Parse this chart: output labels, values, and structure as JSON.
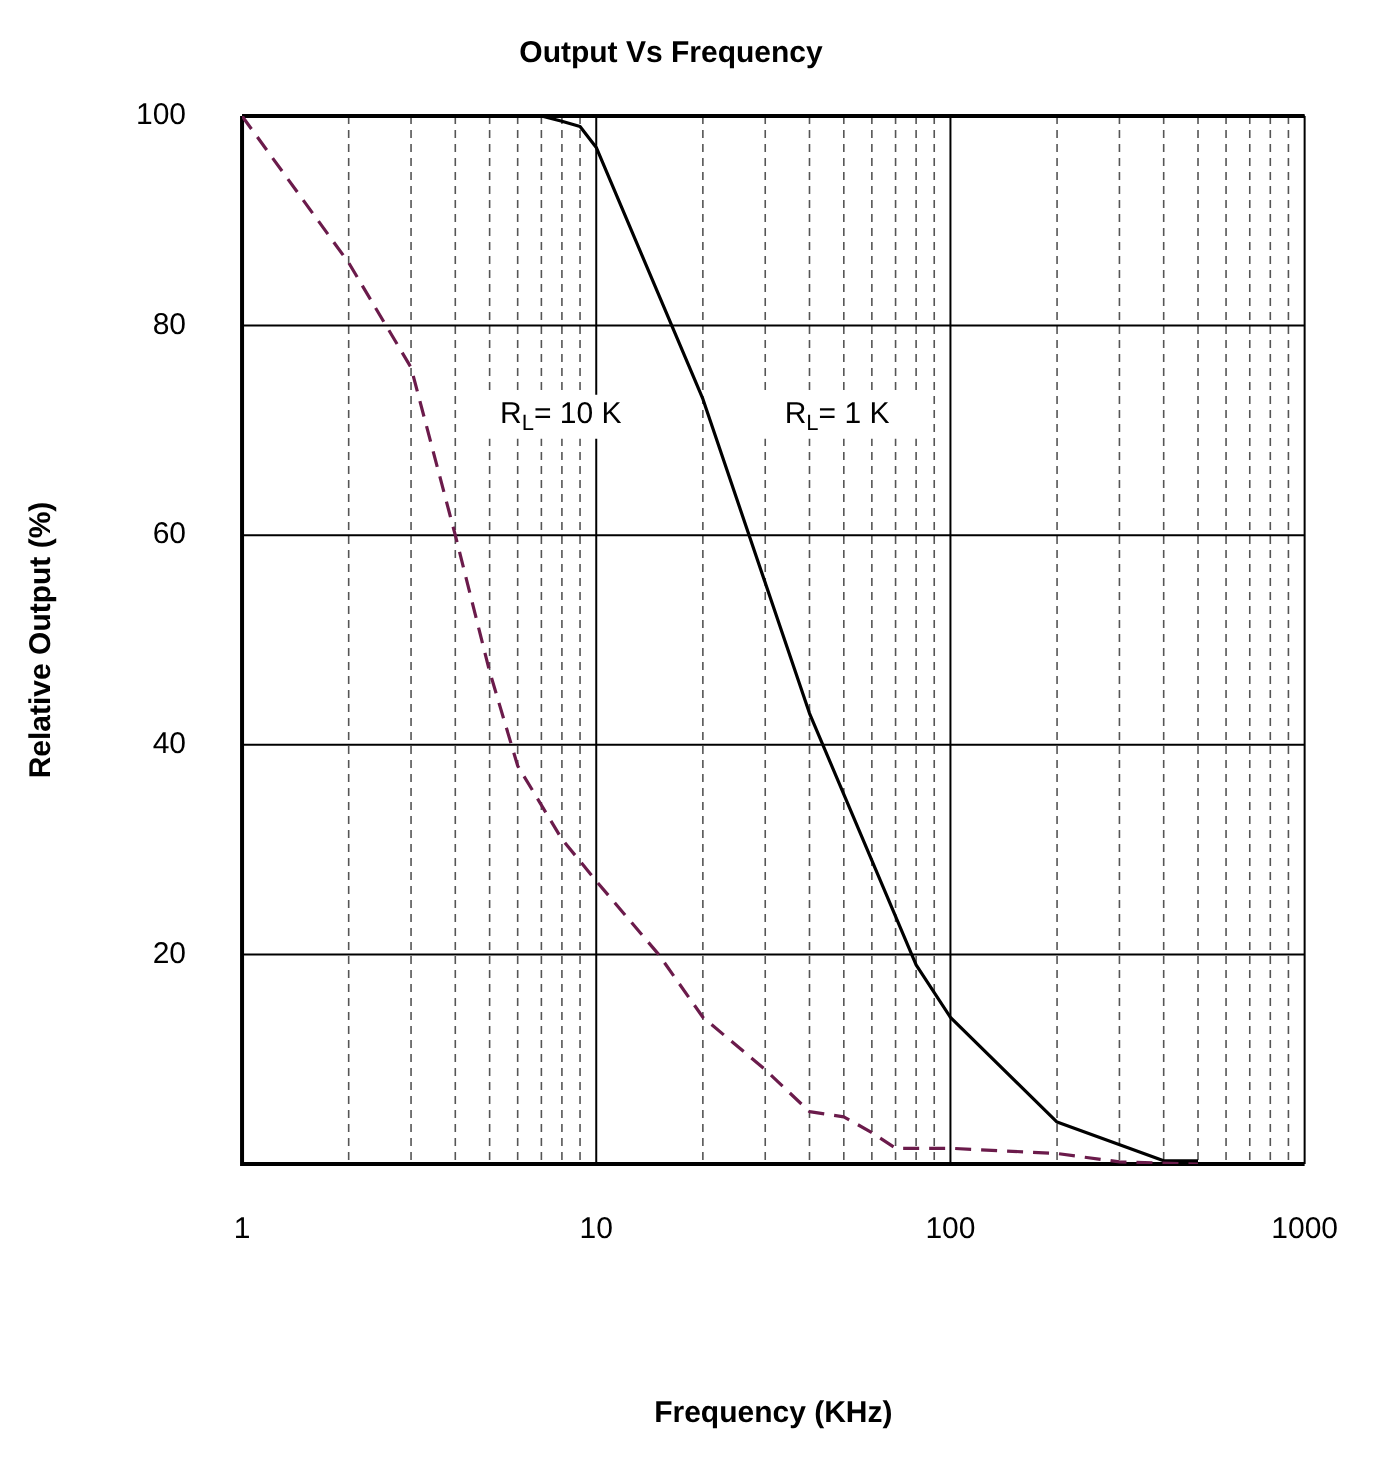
{
  "chart_data": {
    "type": "line",
    "title": "Output Vs Frequency",
    "xlabel": "Frequency (KHz)",
    "ylabel": "Relative Output (%)",
    "log": "x",
    "grid": true,
    "legend": false,
    "marker": "none",
    "xlim": [
      1,
      1000
    ],
    "xticks": [
      1,
      {
        "value": 2,
        "label": null
      },
      {
        "value": 3,
        "label": null
      },
      {
        "value": 4,
        "label": null
      },
      {
        "value": 5,
        "label": null
      },
      {
        "value": 6,
        "label": null
      },
      {
        "value": 7,
        "label": null
      },
      {
        "value": 8,
        "label": null
      },
      {
        "value": 9,
        "label": null
      },
      10,
      {
        "value": 20,
        "label": null
      },
      {
        "value": 30,
        "label": null
      },
      {
        "value": 40,
        "label": null
      },
      {
        "value": 50,
        "label": null
      },
      {
        "value": 60,
        "label": null
      },
      {
        "value": 70,
        "label": null
      },
      {
        "value": 80,
        "label": null
      },
      {
        "value": 90,
        "label": null
      },
      100,
      {
        "value": 200,
        "label": null
      },
      {
        "value": 300,
        "label": null
      },
      {
        "value": 400,
        "label": null
      },
      {
        "value": 500,
        "label": null
      },
      {
        "value": 600,
        "label": null
      },
      {
        "value": 700,
        "label": null
      },
      {
        "value": 800,
        "label": null
      },
      {
        "value": 900,
        "label": null
      },
      1000
    ],
    "ylim": [
      0,
      100
    ],
    "yticks": [
      20,
      40,
      60,
      80,
      100
    ],
    "series": [
      {
        "color": "#6b1b4b",
        "line_style": "dashed",
        "x": [
          1,
          2,
          3,
          4,
          5,
          6,
          8,
          10,
          15,
          20,
          30,
          40,
          50,
          60,
          70,
          100,
          200,
          300,
          500
        ],
        "values": [
          100,
          86,
          76,
          60,
          47,
          38,
          31,
          27,
          20,
          14,
          9,
          5,
          4.5,
          3,
          1.5,
          1.5,
          1,
          0.2,
          0
        ]
      },
      {
        "color": "#000000",
        "line_style": "solid",
        "x": [
          7,
          8,
          9,
          10,
          20,
          40,
          80,
          100,
          200,
          400,
          500
        ],
        "values": [
          100,
          99.5,
          99,
          97,
          73,
          43,
          19,
          14,
          4,
          0.3,
          0.3
        ]
      }
    ],
    "annotations": [
      "R$_{L}$= 10 K",
      "R$_{L}$= 1 K"
    ]
  }
}
